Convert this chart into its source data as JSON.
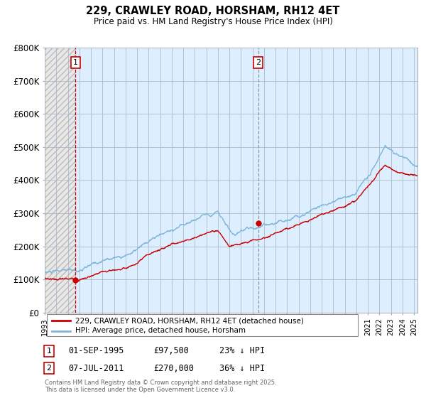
{
  "title": "229, CRAWLEY ROAD, HORSHAM, RH12 4ET",
  "subtitle": "Price paid vs. HM Land Registry's House Price Index (HPI)",
  "legend_line1": "229, CRAWLEY ROAD, HORSHAM, RH12 4ET (detached house)",
  "legend_line2": "HPI: Average price, detached house, Horsham",
  "annotation1_label": "1",
  "annotation1_date": "01-SEP-1995",
  "annotation1_price": "£97,500",
  "annotation1_hpi": "23% ↓ HPI",
  "annotation2_label": "2",
  "annotation2_date": "07-JUL-2011",
  "annotation2_price": "£270,000",
  "annotation2_hpi": "36% ↓ HPI",
  "footer": "Contains HM Land Registry data © Crown copyright and database right 2025.\nThis data is licensed under the Open Government Licence v3.0.",
  "red_color": "#cc0000",
  "blue_color": "#7eb6d9",
  "vline1_color": "#cc0000",
  "vline2_color": "#8899aa",
  "plot_bg_color": "#ddeeff",
  "hatch_bg_color": "#e8e8e8",
  "grid_color": "#aabbcc",
  "ylim": [
    0,
    800000
  ],
  "yticks": [
    0,
    100000,
    200000,
    300000,
    400000,
    500000,
    600000,
    700000,
    800000
  ],
  "ytick_labels": [
    "£0",
    "£100K",
    "£200K",
    "£300K",
    "£400K",
    "£500K",
    "£600K",
    "£700K",
    "£800K"
  ],
  "marker1_x": 1995.67,
  "marker1_y": 97500,
  "marker2_x": 2011.5,
  "marker2_y": 270000,
  "vline1_x": 1995.67,
  "vline2_x": 2011.5,
  "xmin": 1993.0,
  "xmax": 2025.3,
  "hatch_end_x": 1995.67
}
